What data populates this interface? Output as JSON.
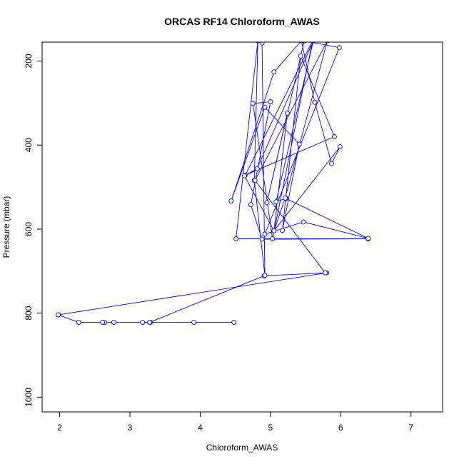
{
  "chart_data": {
    "type": "line",
    "title": "ORCAS RF14 Chloroform_AWAS",
    "xlabel": "Chloroform_AWAS",
    "ylabel": "Pressure (mbar)",
    "xlim": [
      1.75,
      7.45
    ],
    "ylim": [
      1035,
      155
    ],
    "y_reversed": true,
    "x_ticks": [
      2,
      3,
      4,
      5,
      6,
      7
    ],
    "y_ticks": [
      200,
      400,
      600,
      800,
      1000
    ],
    "grid": false,
    "legend": "none",
    "color": "#0000ff",
    "marker": "open-circle",
    "series": [
      {
        "points": [
          [
            4.48,
            822
          ],
          [
            3.28,
            822
          ],
          [
            2.77,
            822
          ],
          [
            3.91,
            822
          ],
          [
            3.18,
            822
          ],
          [
            2.64,
            822
          ],
          [
            3.29,
            822
          ],
          [
            2.61,
            822
          ],
          [
            2.27,
            822
          ],
          [
            1.98,
            804
          ],
          [
            5.8,
            704
          ],
          [
            4.91,
            711
          ],
          [
            3.28,
            822
          ]
        ]
      },
      {
        "points": [
          [
            4.88,
            157
          ],
          [
            4.92,
            710
          ],
          [
            4.77,
            484
          ],
          [
            4.82,
            152
          ],
          [
            4.51,
            623
          ],
          [
            6.39,
            623
          ],
          [
            4.88,
            624
          ],
          [
            4.72,
            542
          ],
          [
            5.0,
            297
          ],
          [
            4.75,
            301
          ],
          [
            5.03,
            623
          ],
          [
            5.6,
            152
          ],
          [
            4.64,
            472
          ],
          [
            5.91,
            380
          ],
          [
            5.43,
            188
          ],
          [
            5.17,
            603
          ],
          [
            5.41,
            398
          ],
          [
            4.92,
            310
          ],
          [
            4.44,
            533
          ],
          [
            5.05,
            226
          ],
          [
            5.44,
            152
          ],
          [
            5.63,
            298
          ],
          [
            5.87,
            444
          ],
          [
            5.99,
            404
          ],
          [
            5.05,
            604
          ],
          [
            5.24,
            324
          ],
          [
            4.95,
            537
          ],
          [
            5.48,
            152
          ],
          [
            5.98,
            168
          ],
          [
            4.92,
            612
          ],
          [
            5.47,
            583
          ],
          [
            6.39,
            622
          ],
          [
            5.22,
            527
          ],
          [
            5.08,
            535
          ],
          [
            5.61,
            152
          ],
          [
            4.81,
            456
          ],
          [
            4.63,
            473
          ],
          [
            5.05,
            604
          ],
          [
            5.21,
            526
          ],
          [
            5.81,
            152
          ],
          [
            4.78,
            484
          ],
          [
            5.78,
            704
          ]
        ]
      }
    ]
  }
}
